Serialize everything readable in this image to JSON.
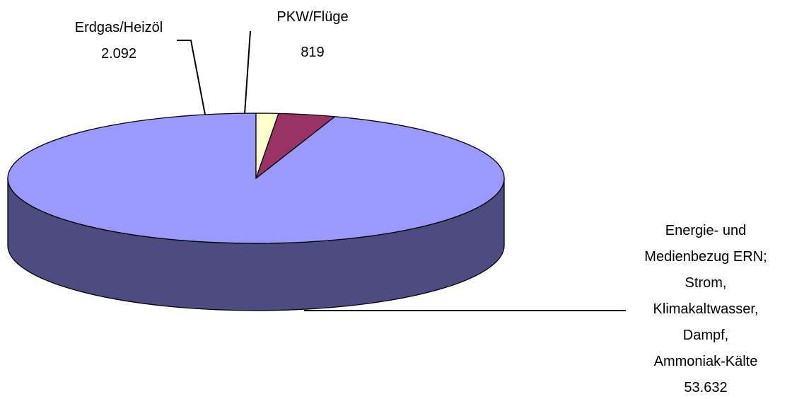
{
  "chart_data": {
    "type": "pie",
    "title": "",
    "categories": [
      "Energie- und Medienbezug ERN; Strom, Klimakaltwasser, Dampf, Ammoniak-Kälte",
      "Erdgas/Heizöl",
      "PKW/Flüge"
    ],
    "values": [
      53632,
      2092,
      819
    ],
    "value_labels": [
      "53.632",
      "2.092",
      "819"
    ],
    "label_lines": [
      [
        "Energie- und",
        "Medienbezug ERN;",
        "Strom,",
        "Klimakaltwasser,",
        "Dampf,",
        "Ammoniak-Kälte"
      ],
      [
        "Erdgas/Heizöl"
      ],
      [
        "PKW/Flüge"
      ]
    ],
    "colors": [
      "#9999FF",
      "#993366",
      "#FFFFCC"
    ],
    "side_colors": [
      "#4C4C80",
      "#4D1933",
      "#808066"
    ],
    "style": "3d",
    "legend": "none"
  }
}
